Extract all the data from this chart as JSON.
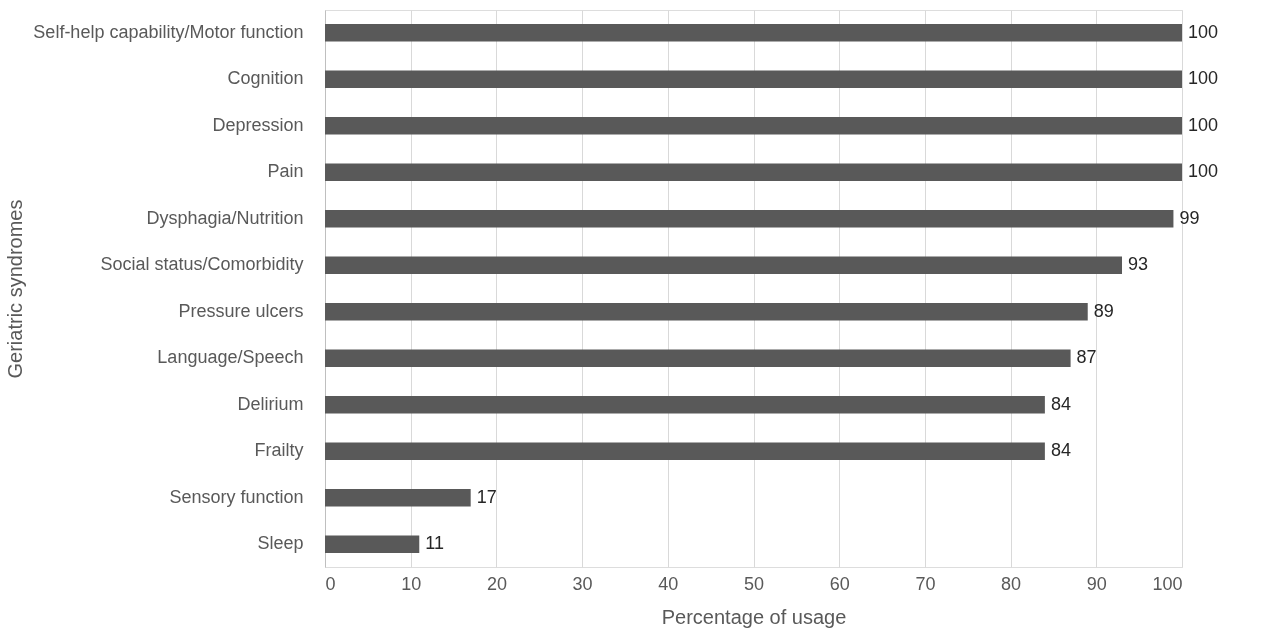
{
  "chart_data": {
    "type": "bar",
    "orientation": "horizontal",
    "xlabel": "Percentage of usage",
    "ylabel": "Geriatric syndromes",
    "categories": [
      "Self-help capability/Motor function",
      "Cognition",
      "Depression",
      "Pain",
      "Dysphagia/Nutrition",
      "Social status/Comorbidity",
      "Pressure ulcers",
      "Language/Speech",
      "Delirium",
      "Frailty",
      "Sensory function",
      "Sleep"
    ],
    "values": [
      100,
      100,
      100,
      100,
      99,
      93,
      89,
      87,
      84,
      84,
      17,
      11
    ],
    "color": "#595959",
    "xlim": [
      0,
      100
    ],
    "xticks": [
      0,
      10,
      20,
      30,
      40,
      50,
      60,
      70,
      80,
      90,
      100
    ],
    "grid": "x",
    "data_labels": true
  }
}
